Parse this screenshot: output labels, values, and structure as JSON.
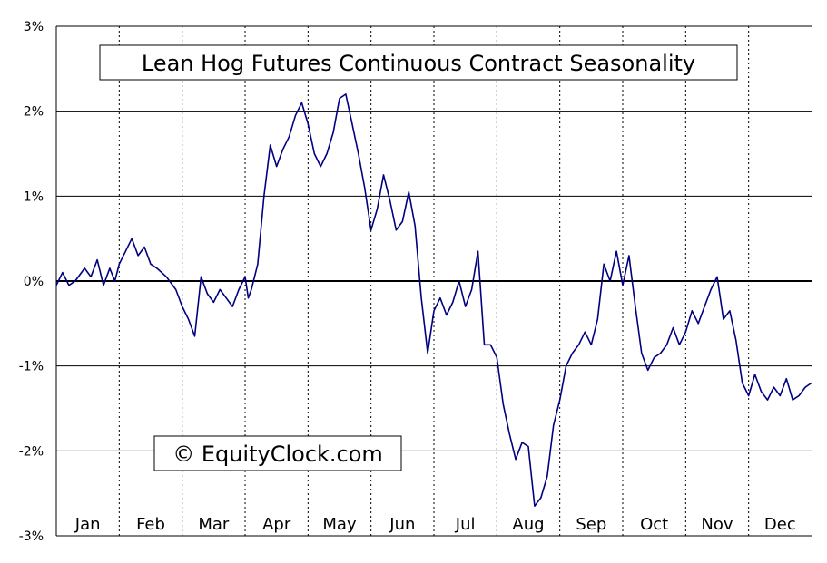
{
  "chart_data": {
    "type": "line",
    "title": "Lean Hog Futures Continuous Contract Seasonality",
    "watermark": "© EquityClock.com",
    "xlabel": "",
    "ylabel": "",
    "ylim": [
      -3,
      3
    ],
    "yticks": [
      3,
      2,
      1,
      0,
      -1,
      -2,
      -3
    ],
    "ytick_labels": [
      "3%",
      "2%",
      "1%",
      "0%",
      "-1%",
      "-2%",
      "-3%"
    ],
    "months": [
      "Jan",
      "Feb",
      "Mar",
      "Apr",
      "May",
      "Jun",
      "Jul",
      "Aug",
      "Sep",
      "Oct",
      "Nov",
      "Dec"
    ],
    "grid": true,
    "line_color": "#000080",
    "series": [
      {
        "x": [
          0,
          0.1,
          0.2,
          0.3,
          0.45,
          0.55,
          0.65,
          0.75,
          0.85,
          0.93,
          1.0,
          1.1,
          1.2,
          1.3,
          1.4,
          1.5,
          1.6,
          1.75,
          1.9,
          2.0,
          2.1,
          2.2,
          2.3,
          2.4,
          2.5,
          2.6,
          2.7,
          2.8,
          2.9,
          3.0,
          3.05,
          3.1,
          3.2,
          3.3,
          3.4,
          3.5,
          3.6,
          3.7,
          3.8,
          3.9,
          4.0,
          4.1,
          4.2,
          4.3,
          4.4,
          4.5,
          4.6,
          4.7,
          4.8,
          4.9,
          5.0,
          5.1,
          5.2,
          5.3,
          5.4,
          5.5,
          5.6,
          5.7,
          5.8,
          5.9,
          6.0,
          6.1,
          6.2,
          6.3,
          6.4,
          6.5,
          6.6,
          6.7,
          6.8,
          6.9,
          7.0,
          7.1,
          7.2,
          7.3,
          7.4,
          7.5,
          7.6,
          7.7,
          7.8,
          7.9,
          8.0,
          8.1,
          8.2,
          8.3,
          8.4,
          8.5,
          8.6,
          8.7,
          8.8,
          8.9,
          9.0,
          9.1,
          9.2,
          9.3,
          9.4,
          9.5,
          9.6,
          9.7,
          9.8,
          9.9,
          10.0,
          10.1,
          10.2,
          10.3,
          10.4,
          10.5,
          10.6,
          10.7,
          10.8,
          10.9,
          11.0,
          11.1,
          11.2,
          11.3,
          11.4,
          11.5,
          11.6,
          11.7,
          11.8,
          11.9,
          12.0
        ],
        "values": [
          -0.05,
          0.1,
          -0.05,
          0.0,
          0.15,
          0.05,
          0.25,
          -0.05,
          0.15,
          0.0,
          0.2,
          0.35,
          0.5,
          0.3,
          0.4,
          0.2,
          0.15,
          0.05,
          -0.1,
          -0.3,
          -0.45,
          -0.65,
          0.05,
          -0.15,
          -0.25,
          -0.1,
          -0.2,
          -0.3,
          -0.1,
          0.05,
          -0.2,
          -0.1,
          0.2,
          1.0,
          1.6,
          1.35,
          1.55,
          1.7,
          1.95,
          2.1,
          1.85,
          1.5,
          1.35,
          1.5,
          1.75,
          2.15,
          2.2,
          1.85,
          1.5,
          1.1,
          0.6,
          0.85,
          1.25,
          0.95,
          0.6,
          0.7,
          1.05,
          0.65,
          -0.2,
          -0.85,
          -0.35,
          -0.2,
          -0.4,
          -0.25,
          0.0,
          -0.3,
          -0.1,
          0.35,
          -0.75,
          -0.75,
          -0.9,
          -1.45,
          -1.8,
          -2.1,
          -1.9,
          -1.95,
          -2.65,
          -2.55,
          -2.3,
          -1.7,
          -1.4,
          -1.0,
          -0.85,
          -0.75,
          -0.6,
          -0.75,
          -0.45,
          0.2,
          0.0,
          0.35,
          -0.05,
          0.3,
          -0.3,
          -0.85,
          -1.05,
          -0.9,
          -0.85,
          -0.75,
          -0.55,
          -0.75,
          -0.6,
          -0.35,
          -0.5,
          -0.3,
          -0.1,
          0.05,
          -0.45,
          -0.35,
          -0.7,
          -1.2,
          -1.35,
          -1.1,
          -1.3,
          -1.4,
          -1.25,
          -1.35,
          -1.15,
          -1.4,
          -1.35,
          -1.25,
          -1.2
        ]
      }
    ]
  }
}
